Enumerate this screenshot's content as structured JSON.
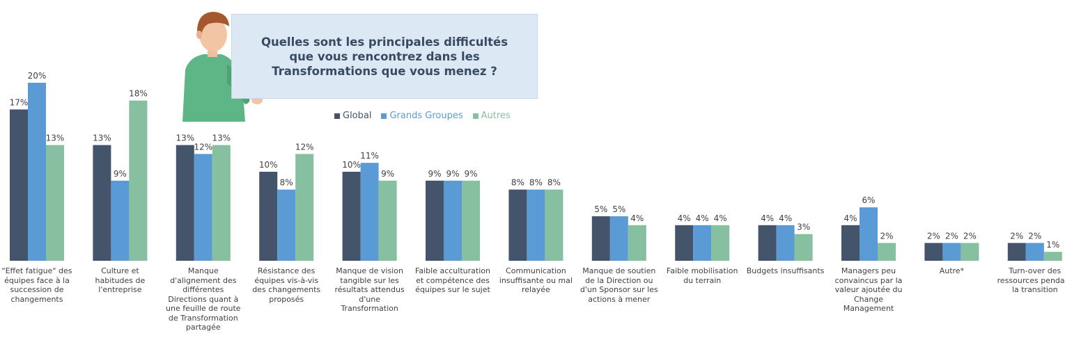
{
  "question": "Quelles sont les principales difficultés que vous rencontrez dans les Transformations que vous menez ?",
  "chart_data": {
    "type": "bar",
    "categories": [
      "\"Effet fatigue\" des équipes face à la succession de changements",
      "Culture et habitudes de l'entreprise",
      "Manque d'alignement des différentes Directions quant à une feuille de route de Transformation partagée",
      "Résistance des équipes vis-à-vis des changements proposés",
      "Manque de vision tangible sur les résultats attendus d'une Transformation",
      "Faible acculturation et compétence des équipes sur le sujet",
      "Communication insuffisante ou mal relayée",
      "Manque de soutien de la Direction ou d'un Sponsor sur les actions à mener",
      "Faible mobilisation du terrain",
      "Budgets insuffisants",
      "Managers peu convaincus par la valeur ajoutée du Change Management",
      "Autre*",
      "Turn-over des ressources pendant la transition"
    ],
    "series": [
      {
        "name": "Global",
        "color": "#44546a",
        "values": [
          17,
          13,
          13,
          10,
          10,
          9,
          8,
          5,
          4,
          4,
          4,
          2,
          2
        ]
      },
      {
        "name": "Grands Groupes",
        "color": "#5b9bd5",
        "values": [
          20,
          9,
          12,
          8,
          11,
          9,
          8,
          5,
          4,
          4,
          6,
          2,
          2
        ]
      },
      {
        "name": "Autres",
        "color": "#86c0a0",
        "values": [
          13,
          18,
          13,
          12,
          9,
          9,
          8,
          4,
          4,
          3,
          2,
          2,
          1
        ]
      }
    ],
    "value_labels": [
      [
        "17%",
        "13%",
        "13%",
        "10%",
        "10%",
        "9%",
        "8%",
        "5%",
        "4%",
        "4%",
        "4%",
        "2%",
        "2%"
      ],
      [
        "20%",
        "9%",
        "12%",
        "8%",
        "11%",
        "9%",
        "8%",
        "5%",
        "4%",
        "4%",
        "6%",
        "2%",
        "2%"
      ],
      [
        "13%",
        "18%",
        "13%",
        "12%",
        "9%",
        "9%",
        "8%",
        "4%",
        "4%",
        "3%",
        "2%",
        "2%",
        "1%"
      ]
    ],
    "ylim": [
      0,
      20
    ],
    "grid": false,
    "legend_position": "top-center"
  }
}
